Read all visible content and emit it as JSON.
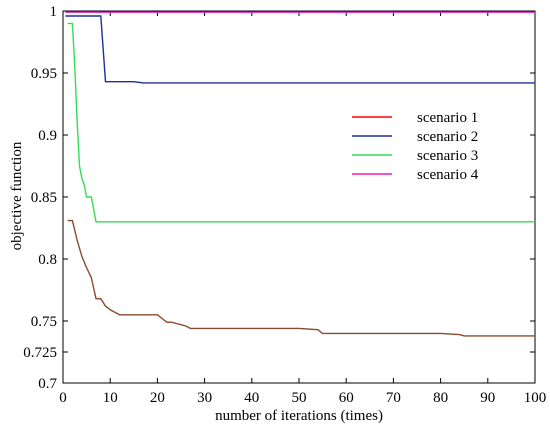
{
  "chart_data": {
    "type": "line",
    "title": "",
    "xlabel": "number of iterations (times)",
    "ylabel": "objective function",
    "xlim": [
      0,
      100
    ],
    "ylim": [
      0.7,
      1.0
    ],
    "x_ticks": [
      0,
      10,
      20,
      30,
      40,
      50,
      60,
      70,
      80,
      90,
      100
    ],
    "y_ticks": [
      0.7,
      0.725,
      0.75,
      0.8,
      0.85,
      0.9,
      0.95,
      1
    ],
    "y_tick_labels": [
      "0.7",
      "0.725",
      "0.75",
      "0.8",
      "0.85",
      "0.9",
      "0.95",
      "1"
    ],
    "grid": false,
    "legend_position": "right",
    "series": [
      {
        "name": "scenario 1",
        "color": "#8b4a2b",
        "legend_color": "#ff0000",
        "x": [
          1,
          2,
          3,
          4,
          5,
          6,
          7,
          8,
          9,
          10,
          11,
          12,
          15,
          20,
          21,
          22,
          23,
          24,
          25,
          26,
          27,
          30,
          40,
          50,
          54,
          55,
          60,
          70,
          80,
          84,
          85,
          90,
          100
        ],
        "y": [
          0.831,
          0.831,
          0.815,
          0.802,
          0.793,
          0.785,
          0.768,
          0.768,
          0.762,
          0.759,
          0.757,
          0.755,
          0.755,
          0.755,
          0.752,
          0.749,
          0.749,
          0.748,
          0.747,
          0.746,
          0.744,
          0.744,
          0.744,
          0.744,
          0.743,
          0.74,
          0.74,
          0.74,
          0.74,
          0.739,
          0.738,
          0.738,
          0.738
        ]
      },
      {
        "name": "scenario 2",
        "color": "#1f2f99",
        "legend_color": "#1f2f99",
        "x": [
          0.5,
          8,
          9,
          15,
          17,
          30,
          50,
          100
        ],
        "y": [
          0.996,
          0.996,
          0.943,
          0.943,
          0.942,
          0.942,
          0.942,
          0.942
        ]
      },
      {
        "name": "scenario 3",
        "color": "#33dd55",
        "legend_color": "#33dd55",
        "x": [
          1,
          2,
          2.5,
          3,
          3.5,
          4,
          4.5,
          5,
          5.5,
          6,
          6.5,
          7,
          8,
          20,
          50,
          100
        ],
        "y": [
          0.99,
          0.99,
          0.955,
          0.91,
          0.875,
          0.865,
          0.86,
          0.85,
          0.85,
          0.85,
          0.84,
          0.83,
          0.83,
          0.83,
          0.83,
          0.83
        ]
      },
      {
        "name": "scenario 4",
        "color": "#e81ec9",
        "legend_color": "#e81ec9",
        "x": [
          0.5,
          10,
          50,
          100
        ],
        "y": [
          0.999,
          0.999,
          0.999,
          0.999
        ]
      }
    ]
  }
}
